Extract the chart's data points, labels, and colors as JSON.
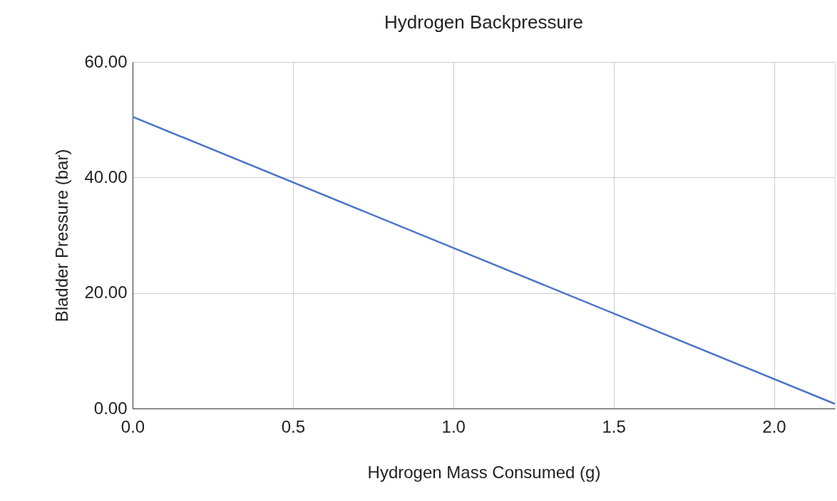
{
  "chart_data": {
    "type": "line",
    "title": "Hydrogen Backpressure",
    "xlabel": "Hydrogen Mass Consumed (g)",
    "ylabel": "Bladder Pressure (bar)",
    "x": [
      0,
      2.19
    ],
    "series": [
      {
        "color": "#4a74c9",
        "values": [
          50.5,
          0.8
        ]
      }
    ],
    "xlim": [
      0,
      2.19
    ],
    "xticks": [
      {
        "value": 0,
        "label": "0.0"
      },
      {
        "value": 0.5,
        "label": "0.5"
      },
      {
        "value": 1,
        "label": "1.0"
      },
      {
        "value": 1.5,
        "label": "1.5"
      },
      {
        "value": 2,
        "label": "2.0"
      }
    ],
    "ylim": [
      0,
      60
    ],
    "yticks": [
      {
        "value": 0,
        "label": "0.00"
      },
      {
        "value": 20,
        "label": "20.00"
      },
      {
        "value": 40,
        "label": "40.00"
      },
      {
        "value": 60,
        "label": "60.00"
      }
    ],
    "grid": true,
    "marker": "none",
    "line_style": "solid"
  }
}
